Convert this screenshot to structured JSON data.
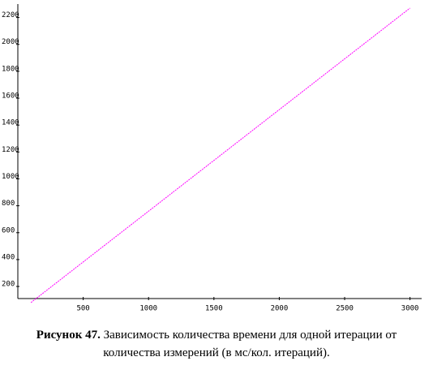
{
  "chart_data": {
    "type": "line",
    "x": [
      100,
      3000
    ],
    "values": [
      80,
      2270
    ],
    "color": "#ff00ff",
    "xlim": [
      0,
      3050
    ],
    "ylim": [
      110,
      2300
    ],
    "xticks": [
      500,
      1000,
      1500,
      2000,
      2500,
      3000
    ],
    "yticks": [
      200,
      400,
      600,
      800,
      1000,
      1200,
      1400,
      1600,
      1800,
      2000,
      2200
    ]
  },
  "caption": {
    "label": "Рисунок 47.",
    "lines": [
      "Зависимость количества времени для одной итерации от",
      "количества измерений (в мс/кол. итераций)."
    ]
  }
}
